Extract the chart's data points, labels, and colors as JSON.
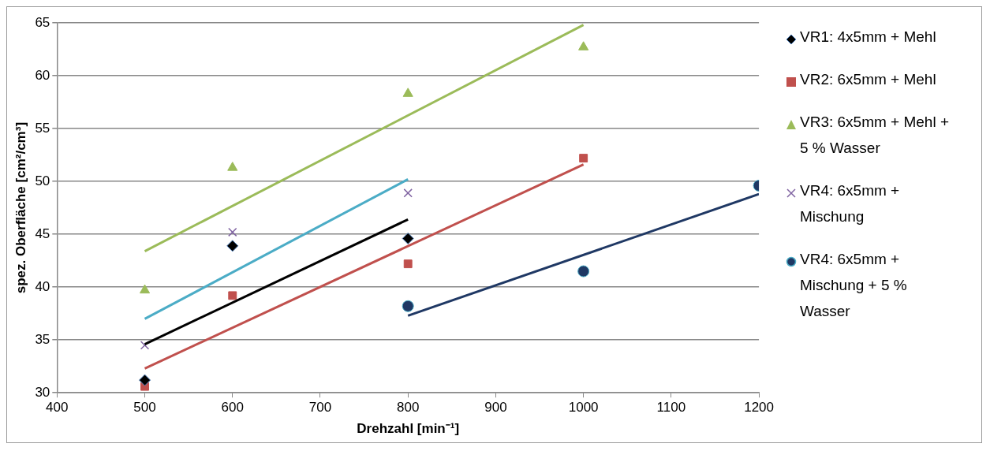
{
  "chart_data": {
    "type": "scatter",
    "xlabel": "Drehzahl [min⁻¹]",
    "ylabel": "spez. Oberfläche [cm²/cm³]",
    "xlim": [
      400,
      1200
    ],
    "xticks": [
      400,
      500,
      600,
      700,
      800,
      900,
      1000,
      1100,
      1200
    ],
    "ylim": [
      30,
      65
    ],
    "yticks": [
      30,
      35,
      40,
      45,
      50,
      55,
      60,
      65
    ],
    "grid": "y",
    "legend": "right",
    "series": [
      {
        "name": "VR1: 4x5mm + Mehl",
        "marker": "diamond",
        "color": "#000000",
        "x": [
          500,
          600,
          800
        ],
        "values": [
          31.2,
          43.9,
          44.6
        ]
      },
      {
        "name": "VR2: 6x5mm + Mehl",
        "marker": "square",
        "color": "#c0504d",
        "x": [
          500,
          600,
          800,
          1000
        ],
        "values": [
          30.6,
          39.2,
          42.2,
          52.2
        ]
      },
      {
        "name": "VR3: 6x5mm + Mehl + 5 % Wasser",
        "marker": "triangle",
        "color": "#9bbb59",
        "x": [
          500,
          600,
          800,
          1000
        ],
        "values": [
          39.7,
          51.3,
          58.3,
          62.7
        ]
      },
      {
        "name": "VR4: 6x5mm + Mischung",
        "marker": "cross",
        "color": "#8064a2",
        "x": [
          500,
          600,
          800
        ],
        "values": [
          34.5,
          45.2,
          48.9
        ]
      },
      {
        "name": "VR4: 6x5mm + Mischung + 5 % Wasser",
        "marker": "circle",
        "color": "#1f3864",
        "x": [
          800,
          1000,
          1200
        ],
        "values": [
          38.2,
          41.5,
          49.6
        ]
      },
      {
        "type": "line",
        "marker": "none",
        "color": "#000000",
        "x": [
          500,
          800
        ],
        "values": [
          34.6,
          46.4
        ]
      },
      {
        "type": "line",
        "marker": "none",
        "color": "#c0504d",
        "x": [
          500,
          1000
        ],
        "values": [
          32.3,
          51.6
        ]
      },
      {
        "type": "line",
        "marker": "none",
        "color": "#9bbb59",
        "x": [
          500,
          1000
        ],
        "values": [
          43.4,
          64.8
        ]
      },
      {
        "type": "line",
        "marker": "none",
        "color": "#4bacc6",
        "x": [
          500,
          800
        ],
        "values": [
          37.0,
          50.2
        ]
      },
      {
        "type": "line",
        "marker": "none",
        "color": "#1f3864",
        "x": [
          800,
          1200
        ],
        "values": [
          37.3,
          48.8
        ]
      }
    ]
  }
}
